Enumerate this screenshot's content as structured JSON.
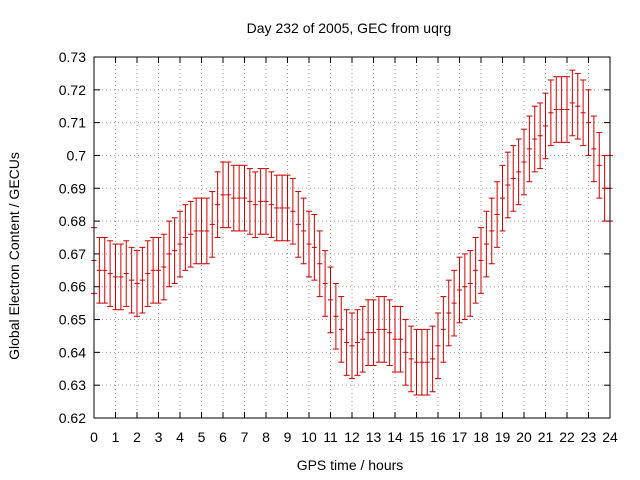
{
  "chart_data": {
    "type": "scatter",
    "title": "Day 232 of 2005, GEC from uqrg",
    "xlabel": "GPS time / hours",
    "ylabel": "Global Electron Content / GECUs",
    "xlim": [
      0,
      24
    ],
    "ylim": [
      0.62,
      0.73
    ],
    "xticks": [
      "0",
      "1",
      "2",
      "3",
      "4",
      "5",
      "6",
      "7",
      "8",
      "9",
      "10",
      "11",
      "12",
      "13",
      "14",
      "15",
      "16",
      "17",
      "18",
      "19",
      "20",
      "21",
      "22",
      "23",
      "24"
    ],
    "yticks": [
      "0.62",
      "0.63",
      "0.64",
      "0.65",
      "0.66",
      "0.67",
      "0.68",
      "0.69",
      "0.7",
      "0.71",
      "0.72",
      "0.73"
    ],
    "grid": true,
    "error": 0.01,
    "color": "#cc0000",
    "series": [
      {
        "x": [
          0,
          0.25,
          0.5,
          0.75,
          1,
          1.25,
          1.5,
          1.75,
          2,
          2.25,
          2.5,
          2.75,
          3,
          3.25,
          3.5,
          3.75,
          4,
          4.25,
          4.5,
          4.75,
          5,
          5.25,
          5.5,
          5.75,
          6,
          6.25,
          6.5,
          6.75,
          7,
          7.25,
          7.5,
          7.75,
          8,
          8.25,
          8.5,
          8.75,
          9,
          9.25,
          9.5,
          9.75,
          10,
          10.25,
          10.5,
          10.75,
          11,
          11.25,
          11.5,
          11.75,
          12,
          12.25,
          12.5,
          12.75,
          13,
          13.25,
          13.5,
          13.75,
          14,
          14.25,
          14.5,
          14.75,
          15,
          15.25,
          15.5,
          15.75,
          16,
          16.25,
          16.5,
          16.75,
          17,
          17.25,
          17.5,
          17.75,
          18,
          18.25,
          18.5,
          18.75,
          19,
          19.25,
          19.5,
          19.75,
          20,
          20.25,
          20.5,
          20.75,
          21,
          21.25,
          21.5,
          21.75,
          22,
          22.25,
          22.5,
          22.75,
          23,
          23.25,
          23.5,
          23.75,
          24
        ],
        "y": [
          0.668,
          0.665,
          0.665,
          0.664,
          0.663,
          0.663,
          0.664,
          0.662,
          0.661,
          0.662,
          0.664,
          0.665,
          0.665,
          0.666,
          0.67,
          0.671,
          0.673,
          0.675,
          0.676,
          0.677,
          0.677,
          0.677,
          0.679,
          0.685,
          0.688,
          0.688,
          0.687,
          0.687,
          0.687,
          0.686,
          0.685,
          0.686,
          0.686,
          0.685,
          0.684,
          0.684,
          0.684,
          0.683,
          0.679,
          0.677,
          0.673,
          0.672,
          0.667,
          0.661,
          0.656,
          0.651,
          0.647,
          0.643,
          0.642,
          0.643,
          0.644,
          0.646,
          0.646,
          0.647,
          0.647,
          0.646,
          0.644,
          0.644,
          0.64,
          0.638,
          0.637,
          0.637,
          0.637,
          0.638,
          0.642,
          0.647,
          0.652,
          0.655,
          0.659,
          0.66,
          0.661,
          0.665,
          0.668,
          0.673,
          0.677,
          0.682,
          0.687,
          0.691,
          0.693,
          0.695,
          0.698,
          0.702,
          0.705,
          0.706,
          0.709,
          0.713,
          0.714,
          0.714,
          0.714,
          0.716,
          0.715,
          0.713,
          0.71,
          0.702,
          0.697,
          0.69,
          0.69
        ]
      }
    ]
  }
}
